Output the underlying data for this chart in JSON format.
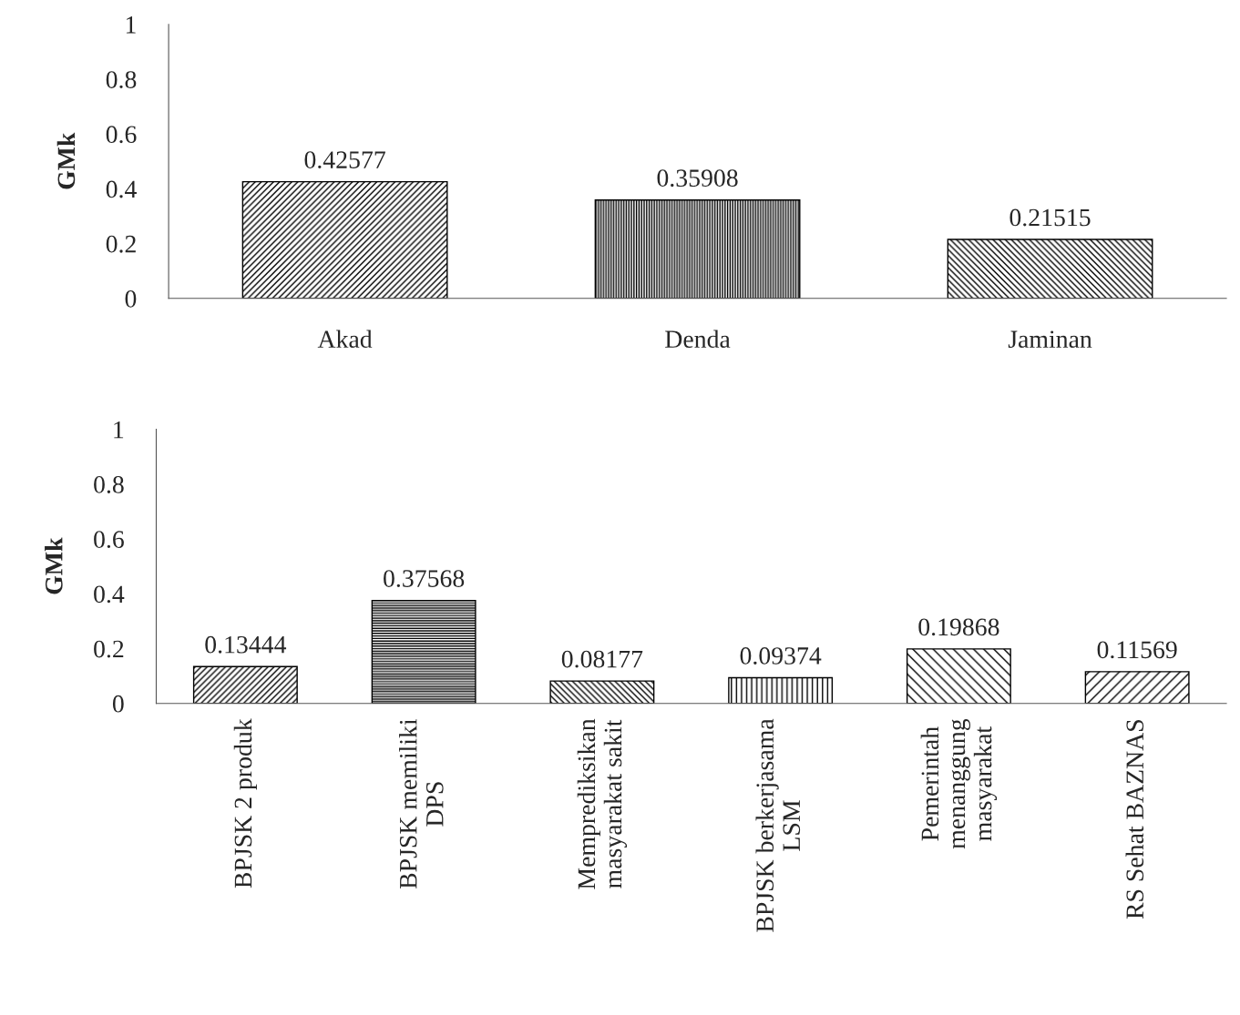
{
  "chart_data": [
    {
      "type": "bar",
      "ylabel": "GMk",
      "categories": [
        "Akad",
        "Denda",
        "Jaminan"
      ],
      "values": [
        0.42577,
        0.35908,
        0.21515
      ],
      "ylim": [
        0,
        1
      ],
      "yticks": [
        0,
        0.2,
        0.4,
        0.6,
        0.8,
        1
      ],
      "data_labels": true,
      "grid": false
    },
    {
      "type": "bar",
      "ylabel": "GMk",
      "categories": [
        "BPJSK 2 produk",
        "BPJSK memiliki\nDPS",
        "Memprediksikan\nmasyarakat sakit",
        "BPJSK berkerjasama\nLSM",
        "Pemerintah\nmenanggung\nmasyarakat",
        "RS Sehat BAZNAS"
      ],
      "values": [
        0.13444,
        0.37568,
        0.08177,
        0.09374,
        0.19868,
        0.11569
      ],
      "ylim": [
        0,
        1
      ],
      "yticks": [
        0,
        0.2,
        0.4,
        0.6,
        0.8,
        1
      ],
      "data_labels": true,
      "grid": false
    }
  ]
}
